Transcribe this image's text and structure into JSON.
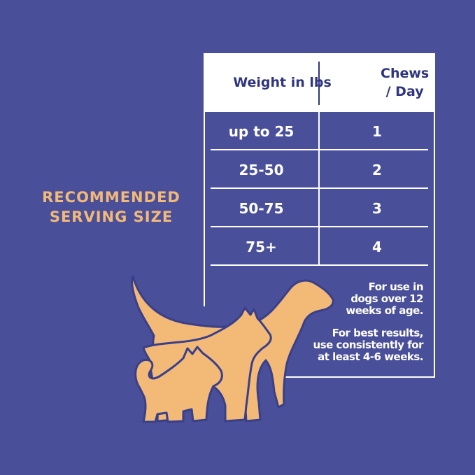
{
  "title": {
    "line1": "RECOMMENDED",
    "line2": "SERVING SIZE"
  },
  "table": {
    "headers": [
      "Weight in lbs",
      "Chews / Day"
    ],
    "rows": [
      {
        "weight": "up to 25",
        "chews": "1"
      },
      {
        "weight": "25-50",
        "chews": "2"
      },
      {
        "weight": "50-75",
        "chews": "3"
      },
      {
        "weight": "75+",
        "chews": "4"
      }
    ]
  },
  "notes": {
    "age": [
      "For use in",
      "dogs over 12",
      "weeks of age."
    ],
    "results": [
      "For best results,",
      "use consistently for",
      "at least 4-6 weeks."
    ]
  },
  "colors": {
    "background": "#4a4f9a",
    "accent": "#f2b977",
    "header_text": "#2f3580"
  },
  "illustration": "dog-silhouettes-icon"
}
